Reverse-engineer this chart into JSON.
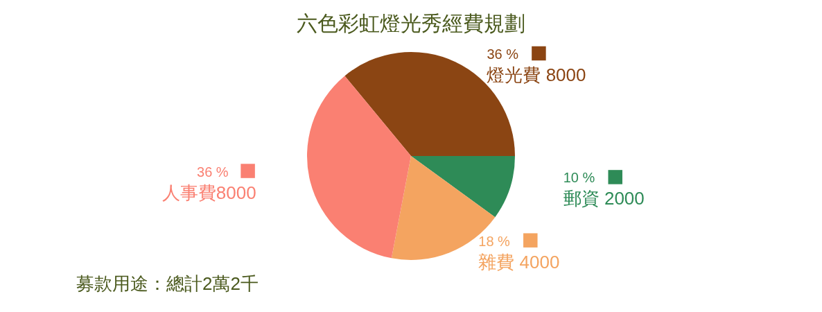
{
  "chart_data": {
    "type": "pie",
    "title": "六色彩虹燈光秀經費規劃",
    "categories": [
      "燈光費 8000",
      "郵資 2000",
      "雜費 4000",
      "人事費8000"
    ],
    "values": [
      36,
      10,
      18,
      36
    ],
    "colors": [
      "#8b4513",
      "#2e8b57",
      "#f4a460",
      "#fa8072"
    ],
    "value_labels": [
      "36 %",
      "10 %",
      "18 %",
      "36 %"
    ],
    "legend": "right",
    "annotations": [
      "募款用途：總計2萬2千"
    ]
  }
}
